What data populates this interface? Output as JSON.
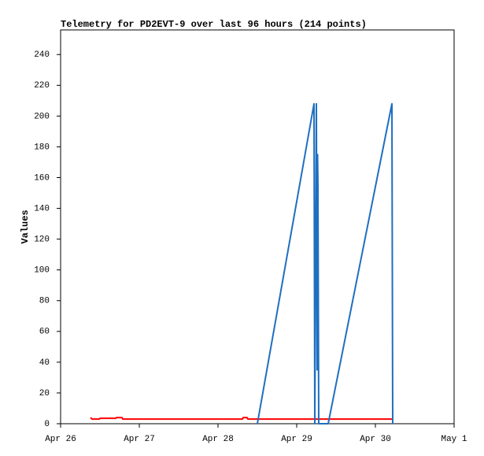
{
  "chart_data": {
    "type": "line",
    "title": "Telemetry for PD2EVT-9 over last 96 hours (214 points)",
    "y_label": "Values",
    "xlim": [
      26,
      31
    ],
    "xticks": [
      {
        "value": 26,
        "label": "Apr 26"
      },
      {
        "value": 27,
        "label": "Apr 27"
      },
      {
        "value": 28,
        "label": "Apr 28"
      },
      {
        "value": 29,
        "label": "Apr 29"
      },
      {
        "value": 30,
        "label": "Apr 30"
      },
      {
        "value": 31,
        "label": "May 1"
      }
    ],
    "ylim": [
      0,
      256
    ],
    "yticks": [
      0,
      20,
      40,
      60,
      80,
      100,
      120,
      140,
      160,
      180,
      200,
      220,
      240
    ],
    "grid": false,
    "series": [
      {
        "color": "#ff0000",
        "x": [
          26.38,
          26.4,
          26.49,
          26.5,
          26.7,
          26.71,
          26.78,
          26.79,
          28.31,
          28.32,
          28.37,
          28.38,
          30.22
        ],
        "values": [
          4,
          3,
          3,
          3.5,
          3.5,
          4,
          4,
          3,
          3,
          4,
          4,
          3,
          3
        ]
      },
      {
        "color": "#1f6fc0",
        "x": [
          28.5,
          29.22,
          29.23,
          29.24,
          29.25,
          29.26,
          29.265,
          29.27,
          29.28,
          29.4,
          30.21,
          30.22
        ],
        "values": [
          0,
          208,
          0,
          105,
          208,
          35,
          175,
          155,
          0,
          0,
          208,
          0
        ]
      }
    ]
  }
}
